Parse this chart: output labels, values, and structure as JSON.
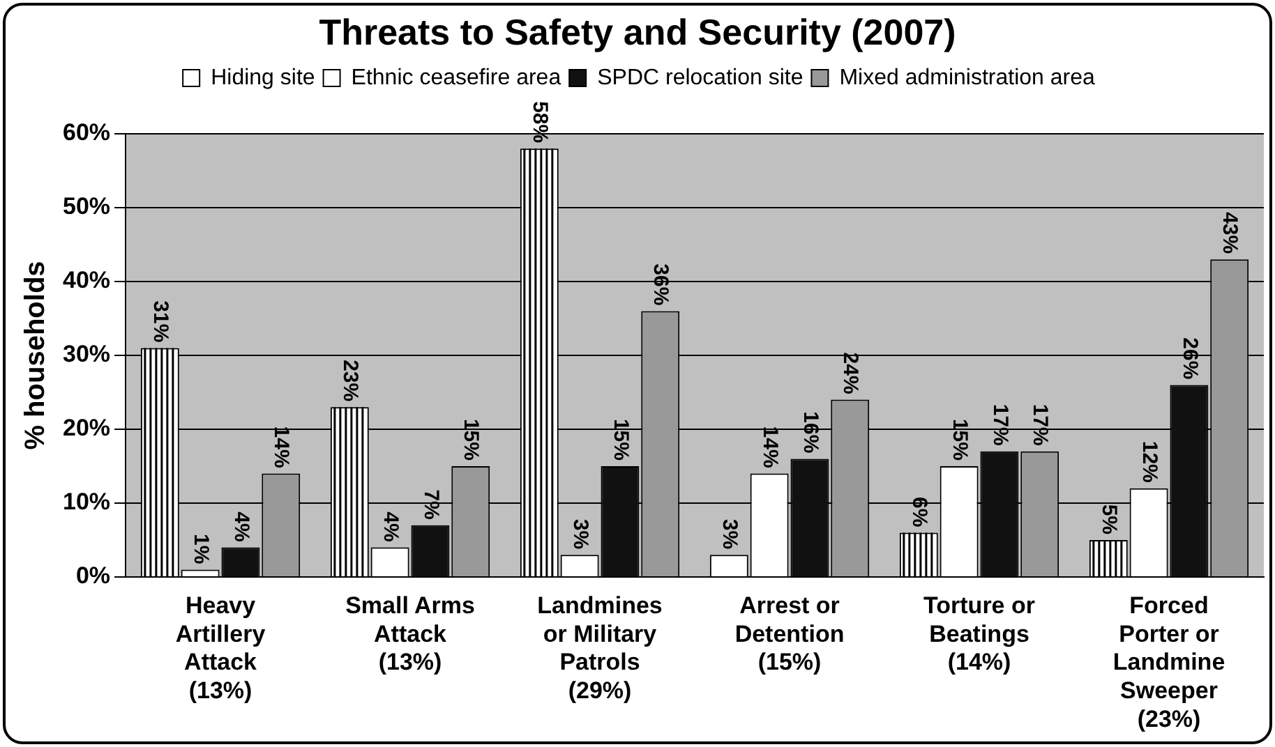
{
  "chart_data": {
    "type": "bar",
    "title": "Threats to Safety and Security (2007)",
    "categories": [
      "Heavy\nArtillery\nAttack\n(13%)",
      "Small Arms\nAttack\n(13%)",
      "Landmines\nor Military\nPatrols\n(29%)",
      "Arrest or\nDetention\n(15%)",
      "Torture or\nBeatings\n(14%)",
      "Forced\nPorter or\nLandmine\nSweeper\n(23%)"
    ],
    "series": [
      {
        "name": "Hiding site",
        "color": "#ffffff",
        "values": [
          31,
          23,
          58,
          3,
          6,
          5
        ],
        "value_labels": [
          "31%",
          "23%",
          "58%",
          "3%",
          "6%",
          "5%"
        ]
      },
      {
        "name": "Ethnic ceasefire area",
        "color": "#ffffff",
        "values": [
          1,
          4,
          3,
          14,
          15,
          12
        ],
        "value_labels": [
          "1%",
          "4%",
          "3%",
          "14%",
          "15%",
          "12%"
        ]
      },
      {
        "name": "SPDC relocation site",
        "color": "#111111",
        "values": [
          4,
          7,
          15,
          16,
          17,
          26
        ],
        "value_labels": [
          "4%",
          "7%",
          "15%",
          "16%",
          "17%",
          "26%"
        ]
      },
      {
        "name": "Mixed administration area",
        "color": "#999999",
        "values": [
          14,
          15,
          36,
          24,
          17,
          43
        ],
        "value_labels": [
          "14%",
          "15%",
          "36%",
          "24%",
          "17%",
          "43%"
        ]
      }
    ],
    "ylabel": "% households",
    "ylim": [
      0,
      60
    ],
    "yticks": [
      {
        "value": 0,
        "label": "0%"
      },
      {
        "value": 10,
        "label": "10%"
      },
      {
        "value": 20,
        "label": "20%"
      },
      {
        "value": 30,
        "label": "30%"
      },
      {
        "value": 40,
        "label": "40%"
      },
      {
        "value": 50,
        "label": "50%"
      },
      {
        "value": 60,
        "label": "60%"
      }
    ],
    "grid": "y",
    "legend": "top"
  }
}
